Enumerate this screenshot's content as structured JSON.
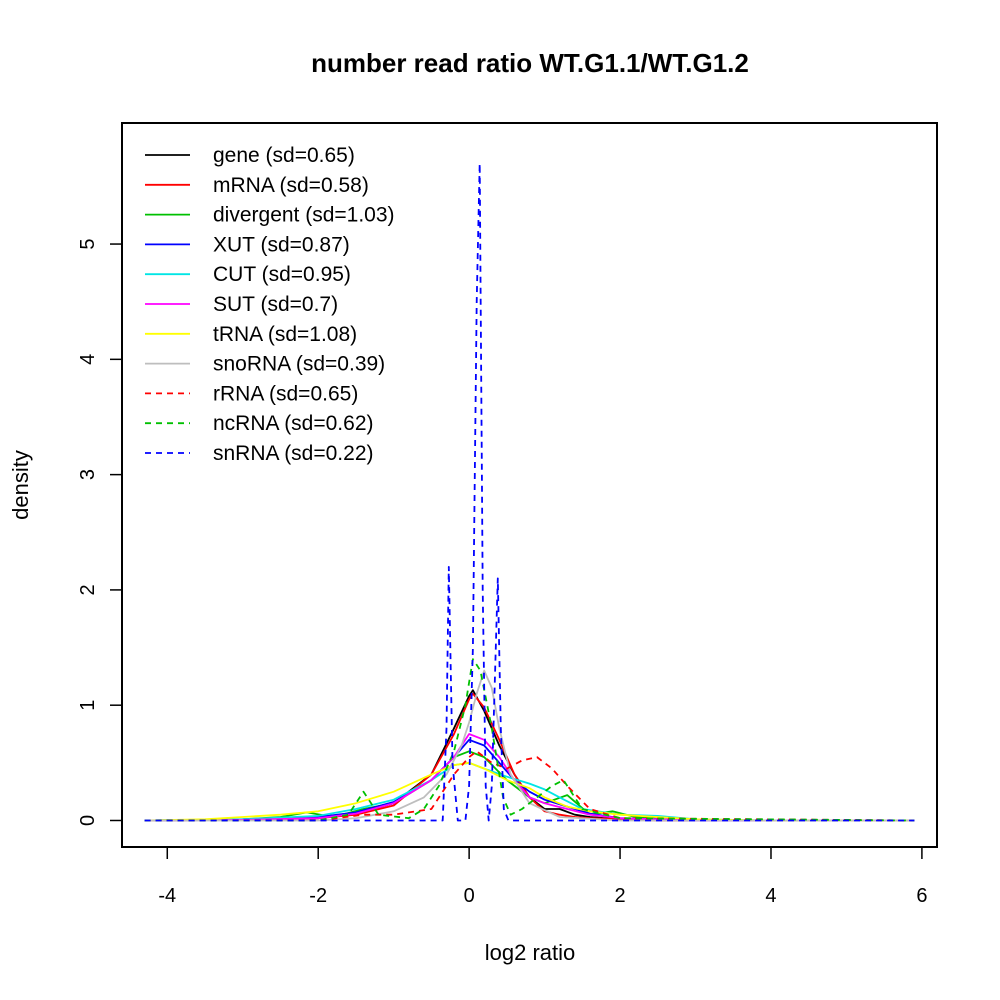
{
  "chart_data": {
    "type": "line",
    "title": "number read ratio WT.G1.1/WT.G1.2",
    "xlabel": "log2 ratio",
    "ylabel": "density",
    "xlim": [
      -4.6,
      6.2
    ],
    "ylim": [
      -0.23,
      6.05
    ],
    "xticks": [
      -4,
      -2,
      0,
      2,
      4,
      6
    ],
    "xtick_labels": [
      "-4",
      "-2",
      "0",
      "2",
      "4",
      "6"
    ],
    "yticks": [
      0,
      1,
      2,
      3,
      4,
      5
    ],
    "ytick_labels": [
      "0",
      "1",
      "2",
      "3",
      "4",
      "5"
    ],
    "legend_position": "top-left",
    "series": [
      {
        "name": "gene (sd=0.65)",
        "color": "#000000",
        "dash": "solid",
        "x": [
          -4.3,
          -3,
          -2,
          -1.5,
          -1,
          -0.5,
          -0.2,
          0,
          0.05,
          0.2,
          0.4,
          0.6,
          0.8,
          1.0,
          1.2,
          1.4,
          1.6,
          2,
          2.5,
          3,
          4,
          5.9
        ],
        "y": [
          0,
          0.005,
          0.02,
          0.06,
          0.15,
          0.4,
          0.8,
          1.08,
          1.13,
          0.95,
          0.65,
          0.4,
          0.2,
          0.1,
          0.1,
          0.05,
          0.03,
          0.01,
          0.005,
          0,
          0,
          0
        ]
      },
      {
        "name": "mRNA (sd=0.58)",
        "color": "#ff0000",
        "dash": "solid",
        "x": [
          -4.3,
          -3,
          -2,
          -1.5,
          -1,
          -0.5,
          -0.2,
          0,
          0.05,
          0.2,
          0.4,
          0.6,
          0.8,
          1.0,
          1.2,
          1.4,
          1.6,
          2,
          2.5,
          3,
          4,
          5.9
        ],
        "y": [
          0,
          0.005,
          0.02,
          0.05,
          0.13,
          0.4,
          0.75,
          1.05,
          1.1,
          0.98,
          0.7,
          0.4,
          0.2,
          0.08,
          0.05,
          0.03,
          0.02,
          0.01,
          0,
          0,
          0,
          0
        ]
      },
      {
        "name": "divergent (sd=1.03)",
        "color": "#00c000",
        "dash": "solid",
        "x": [
          -4.3,
          -3,
          -2.5,
          -2.15,
          -1.8,
          -1.4,
          -1,
          -0.5,
          -0.2,
          0,
          0.2,
          0.5,
          0.8,
          1.0,
          1.3,
          1.6,
          1.9,
          2.2,
          2.6,
          3,
          4,
          5.9
        ],
        "y": [
          0,
          0.01,
          0.03,
          0.07,
          0.03,
          0.1,
          0.15,
          0.35,
          0.55,
          0.6,
          0.55,
          0.35,
          0.2,
          0.15,
          0.22,
          0.05,
          0.08,
          0.03,
          0.01,
          0,
          0,
          0
        ]
      },
      {
        "name": "XUT (sd=0.87)",
        "color": "#0000ff",
        "dash": "solid",
        "x": [
          -4.3,
          -3,
          -2,
          -1.5,
          -1,
          -0.5,
          -0.2,
          0,
          0.2,
          0.4,
          0.6,
          0.8,
          1.0,
          1.3,
          1.6,
          2,
          2.5,
          3,
          4,
          5.9
        ],
        "y": [
          0,
          0.01,
          0.03,
          0.07,
          0.16,
          0.35,
          0.55,
          0.7,
          0.65,
          0.5,
          0.35,
          0.25,
          0.18,
          0.12,
          0.06,
          0.02,
          0.01,
          0,
          0,
          0
        ]
      },
      {
        "name": "CUT (sd=0.95)",
        "color": "#00e5e5",
        "dash": "solid",
        "x": [
          -4.3,
          -3,
          -2,
          -1.5,
          -1,
          -0.5,
          -0.2,
          0,
          0.2,
          0.5,
          0.8,
          1.0,
          1.2,
          1.5,
          2,
          2.5,
          3,
          4,
          5.9
        ],
        "y": [
          0,
          0.01,
          0.04,
          0.1,
          0.18,
          0.35,
          0.48,
          0.5,
          0.45,
          0.38,
          0.32,
          0.27,
          0.2,
          0.1,
          0.05,
          0.04,
          0.01,
          0,
          0
        ]
      },
      {
        "name": "SUT (sd=0.7)",
        "color": "#ff00ff",
        "dash": "solid",
        "x": [
          -4.3,
          -3,
          -2,
          -1.5,
          -1,
          -0.5,
          -0.2,
          0,
          0.2,
          0.4,
          0.6,
          0.8,
          1.0,
          1.3,
          1.6,
          2,
          2.5,
          3,
          4,
          5.9
        ],
        "y": [
          0,
          0.005,
          0.02,
          0.06,
          0.15,
          0.35,
          0.55,
          0.75,
          0.7,
          0.55,
          0.35,
          0.2,
          0.15,
          0.1,
          0.05,
          0.02,
          0.01,
          0,
          0,
          0
        ]
      },
      {
        "name": "tRNA (sd=1.08)",
        "color": "#ffff00",
        "dash": "solid",
        "x": [
          -4.3,
          -3.5,
          -3,
          -2.5,
          -2,
          -1.5,
          -1,
          -0.5,
          -0.2,
          0,
          0.2,
          0.5,
          0.8,
          1.0,
          1.3,
          1.6,
          2,
          2.5,
          3,
          4,
          5.9
        ],
        "y": [
          0,
          0.01,
          0.03,
          0.05,
          0.08,
          0.15,
          0.25,
          0.4,
          0.48,
          0.5,
          0.45,
          0.35,
          0.28,
          0.2,
          0.12,
          0.08,
          0.05,
          0.03,
          0.01,
          0,
          0
        ]
      },
      {
        "name": "snoRNA (sd=0.39)",
        "color": "#bebebe",
        "dash": "solid",
        "x": [
          -4.3,
          -2,
          -1.5,
          -1,
          -0.6,
          -0.3,
          -0.1,
          0,
          0.1,
          0.2,
          0.3,
          0.4,
          0.55,
          0.8,
          1.2,
          2,
          5.9
        ],
        "y": [
          0,
          0,
          0.02,
          0.08,
          0.2,
          0.4,
          0.65,
          0.85,
          1.1,
          1.3,
          1.15,
          0.8,
          0.4,
          0.15,
          0.03,
          0,
          0
        ]
      },
      {
        "name": "rRNA (sd=0.65)",
        "color": "#ff0000",
        "dash": "dashed",
        "x": [
          -4.3,
          -2,
          -1.4,
          -1,
          -0.5,
          -0.2,
          0,
          0.1,
          0.3,
          0.5,
          0.7,
          0.9,
          1.1,
          1.3,
          1.6,
          2,
          5.9
        ],
        "y": [
          0,
          0,
          0.05,
          0.05,
          0.1,
          0.4,
          0.55,
          0.6,
          0.5,
          0.45,
          0.52,
          0.55,
          0.45,
          0.3,
          0.1,
          0.02,
          0
        ]
      },
      {
        "name": "ncRNA (sd=0.62)",
        "color": "#00c000",
        "dash": "dashed",
        "x": [
          -4.3,
          -2,
          -1.6,
          -1.4,
          -1.2,
          -0.8,
          -0.6,
          -0.4,
          -0.2,
          -0.05,
          0.05,
          0.15,
          0.3,
          0.45,
          0.55,
          0.7,
          0.9,
          1.1,
          1.25,
          1.5,
          1.8,
          2,
          5.9
        ],
        "y": [
          0,
          0,
          0.05,
          0.25,
          0.05,
          0.02,
          0.1,
          0.3,
          0.6,
          1.0,
          1.4,
          1.3,
          0.8,
          0.2,
          0.05,
          0.1,
          0.2,
          0.3,
          0.35,
          0.1,
          0.05,
          0.02,
          0
        ]
      },
      {
        "name": "snRNA (sd=0.22)",
        "color": "#0000ff",
        "dash": "dashed",
        "x": [
          -4.3,
          -0.5,
          -0.35,
          -0.3,
          -0.27,
          -0.22,
          -0.15,
          -0.1,
          -0.05,
          0,
          0.05,
          0.1,
          0.14,
          0.18,
          0.22,
          0.26,
          0.3,
          0.34,
          0.38,
          0.42,
          0.46,
          0.52,
          0.6,
          5.9
        ],
        "y": [
          0,
          0,
          0,
          0.8,
          2.2,
          0.5,
          0,
          0,
          0,
          0.3,
          1.5,
          4.5,
          5.7,
          2.0,
          0.3,
          0,
          0.3,
          1.2,
          2.1,
          0.8,
          0.1,
          0,
          0,
          0
        ]
      }
    ]
  }
}
